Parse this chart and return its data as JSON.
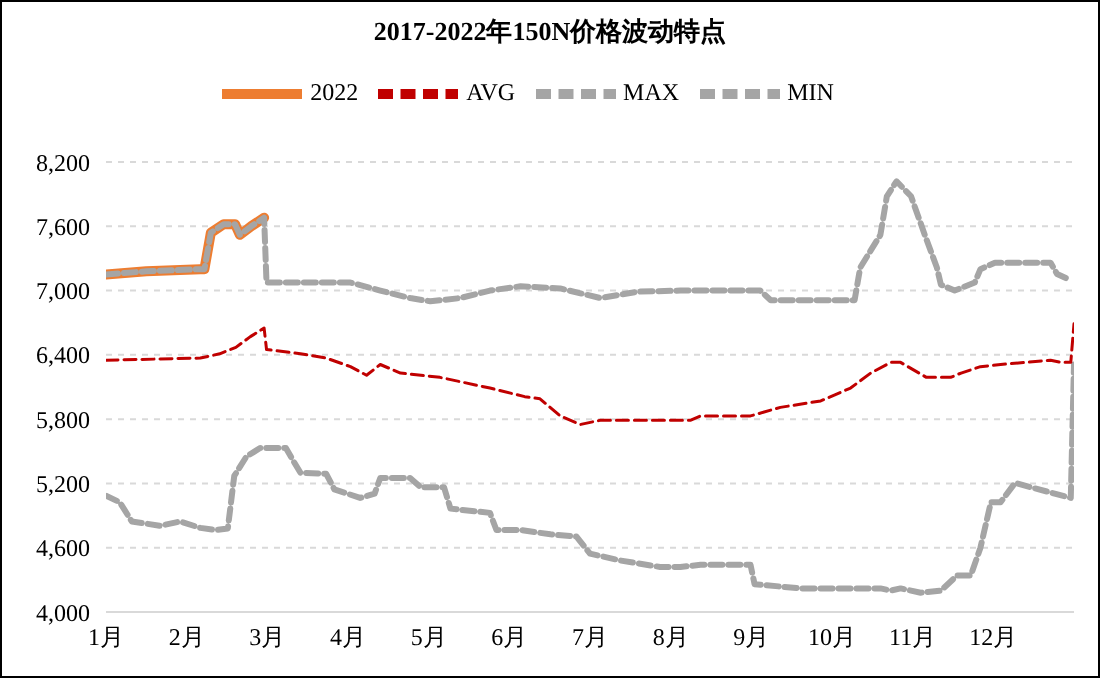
{
  "chart_data": {
    "type": "line",
    "title": "2017-2022年150N价格波动特点",
    "legend": "top",
    "grid": "y",
    "line_style": "dashed",
    "marker": "none",
    "xlim": [
      1,
      13
    ],
    "xticks": [
      {
        "value": 1,
        "label": "1月"
      },
      {
        "value": 2,
        "label": "2月"
      },
      {
        "value": 3,
        "label": "3月"
      },
      {
        "value": 4,
        "label": "4月"
      },
      {
        "value": 5,
        "label": "5月"
      },
      {
        "value": 6,
        "label": "6月"
      },
      {
        "value": 7,
        "label": "7月"
      },
      {
        "value": 8,
        "label": "8月"
      },
      {
        "value": 9,
        "label": "9月"
      },
      {
        "value": 10,
        "label": "10月"
      },
      {
        "value": 11,
        "label": "11月"
      },
      {
        "value": 12,
        "label": "12月"
      }
    ],
    "ylim": [
      4000,
      8200
    ],
    "yticks": [
      {
        "value": 4000,
        "label": "4,000"
      },
      {
        "value": 4600,
        "label": "4,600"
      },
      {
        "value": 5200,
        "label": "5,200"
      },
      {
        "value": 5800,
        "label": "5,800"
      },
      {
        "value": 6400,
        "label": "6,400"
      },
      {
        "value": 7000,
        "label": "7,000"
      },
      {
        "value": 7600,
        "label": "7,600"
      },
      {
        "value": 8200,
        "label": "8,200"
      }
    ],
    "series": [
      {
        "name": "2022",
        "color": "#ed7d31",
        "line_style": "solid",
        "x": [
          1,
          1.5,
          2.17,
          2.22,
          2.3,
          2.46,
          2.6,
          2.66,
          2.8,
          2.96
        ],
        "values": [
          7150,
          7180,
          7200,
          7200,
          7540,
          7620,
          7620,
          7520,
          7600,
          7680
        ]
      },
      {
        "name": "MAX",
        "color": "#a5a5a5",
        "x": [
          1,
          1.5,
          2.17,
          2.22,
          2.3,
          2.46,
          2.6,
          2.66,
          2.8,
          2.96,
          2.99,
          3.4,
          4.03,
          4.4,
          4.77,
          5.02,
          5.39,
          5.76,
          6.14,
          6.63,
          7.13,
          7.6,
          8.12,
          8.37,
          9.11,
          9.24,
          10.28,
          10.35,
          10.6,
          10.68,
          10.8,
          10.98,
          11.15,
          11.3,
          11.35,
          11.52,
          11.77,
          11.84,
          12.02,
          12.71,
          12.79,
          12.96
        ],
        "values": [
          7150,
          7180,
          7200,
          7200,
          7540,
          7620,
          7620,
          7520,
          7600,
          7680,
          7075,
          7075,
          7075,
          7000,
          6930,
          6900,
          6930,
          7000,
          7040,
          7020,
          6930,
          6990,
          7000,
          7000,
          7000,
          6910,
          6910,
          7215,
          7520,
          7880,
          8020,
          7880,
          7520,
          7215,
          7055,
          7000,
          7075,
          7200,
          7260,
          7260,
          7155,
          7095
        ]
      },
      {
        "name": "MIN",
        "color": "#a5a5a5",
        "x": [
          1,
          1.17,
          1.32,
          1.67,
          1.92,
          2.17,
          2.36,
          2.51,
          2.59,
          2.74,
          2.91,
          3.23,
          3.33,
          3.41,
          3.73,
          3.83,
          4.15,
          4.33,
          4.4,
          4.77,
          4.9,
          5.19,
          5.27,
          5.76,
          5.84,
          6.14,
          6.51,
          6.83,
          7.0,
          7.38,
          7.87,
          8.12,
          8.37,
          8.99,
          9.04,
          9.61,
          10.6,
          10.73,
          10.85,
          11.1,
          11.35,
          11.55,
          11.72,
          11.84,
          11.97,
          12.09,
          12.27,
          12.46,
          12.76,
          12.96,
          13
        ],
        "values": [
          5085,
          5025,
          4845,
          4805,
          4845,
          4785,
          4765,
          4780,
          5270,
          5450,
          5530,
          5530,
          5400,
          5300,
          5290,
          5145,
          5065,
          5105,
          5250,
          5250,
          5165,
          5165,
          4965,
          4925,
          4765,
          4765,
          4725,
          4705,
          4545,
          4480,
          4420,
          4420,
          4440,
          4440,
          4260,
          4220,
          4220,
          4200,
          4220,
          4180,
          4200,
          4340,
          4340,
          4600,
          5025,
          5025,
          5205,
          5165,
          5105,
          5065,
          6310
        ]
      },
      {
        "name": "AVG",
        "color": "#c00000",
        "x": [
          1,
          2.17,
          2.41,
          2.61,
          2.79,
          2.96,
          2.99,
          3.41,
          3.73,
          4.03,
          4.23,
          4.4,
          4.65,
          5.14,
          5.76,
          6.19,
          6.38,
          6.63,
          6.88,
          7.13,
          8.25,
          8.37,
          8.99,
          9.36,
          9.86,
          10.23,
          10.48,
          10.73,
          10.85,
          11.17,
          11.47,
          11.6,
          11.84,
          12.09,
          12.71,
          12.84,
          12.96,
          13
        ],
        "values": [
          6350,
          6370,
          6410,
          6470,
          6570,
          6650,
          6450,
          6410,
          6370,
          6290,
          6210,
          6310,
          6230,
          6190,
          6090,
          6010,
          5990,
          5830,
          5750,
          5790,
          5790,
          5830,
          5830,
          5910,
          5970,
          6090,
          6230,
          6330,
          6330,
          6190,
          6190,
          6230,
          6290,
          6310,
          6350,
          6330,
          6330,
          6690
        ]
      }
    ]
  }
}
